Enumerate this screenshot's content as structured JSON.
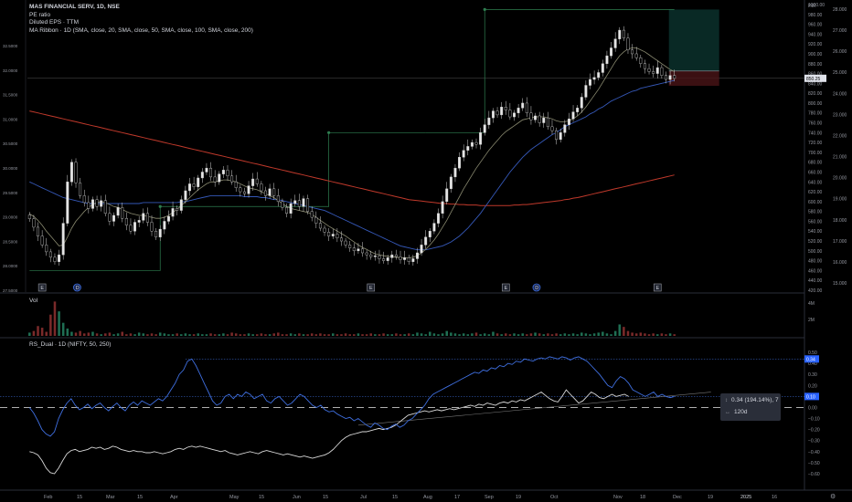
{
  "header": {
    "title": "MAS FINANCIAL SERV, 1D, NSE",
    "pe": "PE ratio",
    "eps": "Diluted EPS · TTM",
    "ma": "MA Ribbon · 1D (SMA, close, 20, SMA, close, 50, SMA, close, 100, SMA, close, 200)"
  },
  "currency": "INR",
  "price_tag": "850.25",
  "volume_label": "Vol",
  "rs_label": "RS_Dual · 1D (NIFTY, 50, 250)",
  "rs_tags": {
    "upper": "0.34",
    "lower": "0.10"
  },
  "measure": {
    "line1": "0.34 (194.14%), 7",
    "line2": "120d",
    "icon1": "arrows-vertical-icon",
    "icon2": "arrows-horizontal-icon"
  },
  "event_badges": [
    "E",
    "D",
    "E",
    "E",
    "D",
    "E"
  ],
  "colors": {
    "bg": "#000000",
    "sma20": "#4a6b3a",
    "sma50": "#3558b8",
    "sma100": "#8a8a70",
    "sma200": "#c0392b",
    "rs_blue": "#3f6fe0",
    "rs_white": "#d9d9d9"
  },
  "chart_data": [
    {
      "type": "candlestick",
      "title": "MAS FINANCIAL SERV, 1D, NSE",
      "x_ticks": [
        "Feb",
        "15",
        "Mar",
        "15",
        "Apr",
        "May",
        "15",
        "Jun",
        "15",
        "Jul",
        "15",
        "Aug",
        "17",
        "Sep",
        "19",
        "Oct",
        "Nov",
        "18",
        "Dec",
        "19",
        "2025",
        "16"
      ],
      "price_ticks": [
        1000,
        980,
        960,
        940,
        920,
        900,
        880,
        860,
        840,
        820,
        800,
        780,
        760,
        740,
        720,
        700,
        680,
        660,
        640,
        620,
        600,
        580,
        560,
        540,
        520,
        500,
        480,
        460,
        440,
        420
      ],
      "price_range": [
        420,
        1000
      ],
      "left_scale_ticks": [
        "32.5000",
        "32.0000",
        "31.5000",
        "31.0000",
        "30.5000",
        "30.0000",
        "29.5000",
        "29.0000",
        "28.5000",
        "28.0000",
        "27.5000"
      ],
      "right_scale_ticks": [
        "28.000",
        "27.000",
        "26.000",
        "25.000",
        "24.000",
        "23.000",
        "22.000",
        "21.000",
        "20.000",
        "19.000",
        "18.000",
        "17.000",
        "16.000",
        "15.000"
      ],
      "close_price": 850.25,
      "closes": [
        565,
        548,
        530,
        512,
        498,
        487,
        478,
        492,
        556,
        640,
        680,
        638,
        612,
        598,
        586,
        604,
        590,
        602,
        576,
        560,
        572,
        588,
        566,
        552,
        540,
        558,
        562,
        576,
        558,
        540,
        528,
        544,
        560,
        570,
        586,
        582,
        604,
        622,
        636,
        630,
        648,
        660,
        668,
        650,
        640,
        656,
        664,
        652,
        640,
        628,
        620,
        616,
        632,
        646,
        636,
        622,
        612,
        626,
        612,
        600,
        588,
        576,
        596,
        602,
        590,
        606,
        580,
        568,
        556,
        546,
        538,
        530,
        534,
        526,
        520,
        512,
        506,
        500,
        504,
        496,
        492,
        488,
        490,
        484,
        480,
        486,
        492,
        488,
        482,
        486,
        478,
        484,
        496,
        512,
        528,
        540,
        556,
        576,
        600,
        626,
        650,
        668,
        690,
        704,
        712,
        720,
        716,
        740,
        756,
        770,
        784,
        776,
        792,
        786,
        772,
        780,
        790,
        800,
        780,
        766,
        774,
        760,
        770,
        752,
        744,
        726,
        740,
        756,
        768,
        782,
        790,
        812,
        836,
        848,
        852,
        862,
        880,
        896,
        912,
        930,
        948,
        932,
        908,
        900,
        892,
        880,
        870,
        864,
        860,
        872,
        856,
        848,
        856,
        850
      ],
      "sma20": [
        575,
        570,
        562,
        552,
        540,
        530,
        520,
        510,
        512,
        528,
        546,
        560,
        570,
        580,
        588,
        594,
        598,
        600,
        598,
        594,
        590,
        588,
        584,
        580,
        576,
        574,
        572,
        572,
        570,
        568,
        566,
        566,
        568,
        572,
        578,
        584,
        592,
        600,
        608,
        616,
        624,
        630,
        636,
        640,
        640,
        642,
        644,
        644,
        642,
        640,
        636,
        632,
        628,
        626,
        624,
        620,
        616,
        612,
        608,
        602,
        596,
        590,
        586,
        584,
        582,
        580,
        578,
        574,
        568,
        562,
        556,
        550,
        545,
        540,
        535,
        530,
        524,
        518,
        512,
        507,
        503,
        498,
        494,
        492,
        490,
        489,
        488,
        487,
        486,
        486,
        486,
        487,
        490,
        496,
        503,
        512,
        522,
        534,
        548,
        562,
        578,
        594,
        610,
        626,
        640,
        654,
        668,
        680,
        692,
        704,
        714,
        724,
        734,
        742,
        748,
        754,
        760,
        766,
        768,
        770,
        772,
        772,
        772,
        770,
        768,
        764,
        762,
        762,
        764,
        768,
        774,
        782,
        792,
        804,
        816,
        828,
        842,
        856,
        870,
        884,
        896,
        904,
        910,
        912,
        912,
        908,
        904,
        898,
        892,
        886,
        880,
        874,
        868,
        864
      ],
      "sma50": [
        640,
        636,
        632,
        628,
        624,
        620,
        616,
        612,
        608,
        606,
        604,
        602,
        600,
        598,
        596,
        596,
        596,
        596,
        596,
        596,
        596,
        596,
        596,
        596,
        596,
        596,
        596,
        598,
        598,
        598,
        598,
        598,
        598,
        598,
        598,
        598,
        600,
        600,
        602,
        604,
        606,
        608,
        610,
        612,
        612,
        612,
        612,
        612,
        612,
        612,
        612,
        610,
        610,
        610,
        610,
        608,
        608,
        606,
        604,
        604,
        602,
        600,
        598,
        596,
        594,
        592,
        590,
        588,
        586,
        584,
        582,
        578,
        574,
        570,
        566,
        562,
        558,
        554,
        550,
        546,
        542,
        538,
        534,
        530,
        526,
        522,
        518,
        514,
        510,
        508,
        506,
        504,
        502,
        502,
        502,
        504,
        506,
        508,
        510,
        514,
        518,
        524,
        530,
        538,
        546,
        556,
        566,
        576,
        588,
        600,
        612,
        624,
        636,
        648,
        660,
        670,
        680,
        690,
        698,
        706,
        712,
        718,
        724,
        730,
        736,
        740,
        746,
        752,
        756,
        760,
        764,
        768,
        772,
        778,
        782,
        788,
        792,
        798,
        804,
        808,
        812,
        816,
        820,
        824,
        826,
        830,
        832,
        834,
        836,
        838,
        840,
        842,
        844,
        846
      ],
      "sma200": [
        784,
        782,
        780,
        778,
        776,
        774,
        772,
        770,
        768,
        766,
        764,
        762,
        760,
        758,
        756,
        754,
        752,
        750,
        748,
        746,
        744,
        742,
        740,
        738,
        736,
        734,
        732,
        730,
        728,
        726,
        724,
        722,
        720,
        718,
        716,
        714,
        712,
        710,
        708,
        706,
        704,
        702,
        700,
        698,
        696,
        694,
        692,
        690,
        688,
        686,
        684,
        682,
        680,
        678,
        676,
        674,
        672,
        670,
        668,
        666,
        664,
        662,
        660,
        658,
        656,
        654,
        652,
        650,
        648,
        646,
        644,
        642,
        640,
        638,
        636,
        634,
        632,
        630,
        628,
        626,
        624,
        622,
        620,
        618,
        616,
        614,
        612,
        610,
        608,
        606,
        604,
        603,
        602,
        601,
        600,
        599,
        598,
        597,
        596,
        596,
        595,
        595,
        594,
        594,
        593,
        593,
        593,
        592,
        592,
        592,
        592,
        592,
        592,
        592,
        592,
        593,
        593,
        594,
        594,
        595,
        596,
        597,
        598,
        599,
        600,
        601,
        602,
        604,
        605,
        607,
        608,
        610,
        612,
        614,
        616,
        618,
        620,
        622,
        624,
        626,
        628,
        630,
        632,
        634,
        636,
        638,
        640,
        642,
        644,
        646,
        648,
        650,
        652,
        654
      ]
    },
    {
      "type": "bar",
      "title": "Vol",
      "y_ticks": [
        "4M",
        "2M"
      ],
      "values_m": [
        0.4,
        0.6,
        1.2,
        1.0,
        0.5,
        2.6,
        4.2,
        3.0,
        1.6,
        0.9,
        0.5,
        0.4,
        0.6,
        0.3,
        0.4,
        0.5,
        0.3,
        0.2,
        0.3,
        0.4,
        0.2,
        0.3,
        0.5,
        0.2,
        0.3,
        0.2,
        0.4,
        0.3,
        0.2,
        0.3,
        0.2,
        0.4,
        0.3,
        0.2,
        0.2,
        0.3,
        0.2,
        0.3,
        0.2,
        0.2,
        0.3,
        0.2,
        0.2,
        0.3,
        0.2,
        0.2,
        0.3,
        0.2,
        0.4,
        0.3,
        0.2,
        0.2,
        0.3,
        0.2,
        0.2,
        0.3,
        0.2,
        0.2,
        0.3,
        0.4,
        0.2,
        0.2,
        0.3,
        0.2,
        0.3,
        0.2,
        0.2,
        0.3,
        0.2,
        0.3,
        0.2,
        0.2,
        0.3,
        0.2,
        0.2,
        0.3,
        0.2,
        0.2,
        0.3,
        0.2,
        0.2,
        0.3,
        0.2,
        0.2,
        0.3,
        0.2,
        0.2,
        0.3,
        0.2,
        0.2,
        0.3,
        0.2,
        0.4,
        0.3,
        0.2,
        0.5,
        0.3,
        0.2,
        0.3,
        0.6,
        0.4,
        0.3,
        0.2,
        0.3,
        0.2,
        0.3,
        0.4,
        0.2,
        0.3,
        0.2,
        0.5,
        0.3,
        0.2,
        0.3,
        0.2,
        0.3,
        0.2,
        0.3,
        0.2,
        0.3,
        0.4,
        0.3,
        0.2,
        0.3,
        0.2,
        0.3,
        0.2,
        0.3,
        0.2,
        0.3,
        0.2,
        0.4,
        0.3,
        0.2,
        0.3,
        0.4,
        0.5,
        0.3,
        0.2,
        0.6,
        1.4,
        1.1,
        0.6,
        0.4,
        0.3,
        0.4,
        0.3,
        0.2,
        0.3,
        0.2,
        0.3,
        0.2,
        0.3,
        0.2
      ]
    },
    {
      "type": "line",
      "title": "RS_Dual · 1D (NIFTY, 50, 250)",
      "y_ticks": [
        0.5,
        0.4,
        0.3,
        0.2,
        0.1,
        0,
        -0.1,
        -0.2,
        -0.3,
        -0.4,
        -0.5,
        -0.6
      ],
      "y_range": [
        -0.65,
        0.55
      ],
      "series": [
        {
          "values": [
            0.0,
            -0.05,
            -0.12,
            -0.2,
            -0.24,
            -0.26,
            -0.22,
            -0.1,
            -0.02,
            0.04,
            0.08,
            0.02,
            -0.02,
            0.0,
            0.03,
            -0.01,
            0.02,
            0.04,
            0.0,
            -0.03,
            0.01,
            0.04,
            0.0,
            -0.03,
            0.02,
            0.05,
            0.02,
            0.06,
            0.04,
            0.02,
            0.05,
            0.08,
            0.06,
            0.1,
            0.16,
            0.22,
            0.3,
            0.34,
            0.42,
            0.44,
            0.38,
            0.3,
            0.22,
            0.14,
            0.06,
            0.02,
            0.04,
            0.1,
            0.12,
            0.08,
            0.12,
            0.1,
            0.14,
            0.12,
            0.08,
            0.1,
            0.12,
            0.06,
            0.04,
            0.08,
            0.1,
            0.06,
            0.02,
            0.04,
            0.08,
            0.12,
            0.1,
            0.06,
            0.02,
            0.0,
            0.02,
            -0.02,
            -0.04,
            -0.03,
            -0.06,
            -0.08,
            -0.1,
            -0.09,
            -0.12,
            -0.1,
            -0.13,
            -0.16,
            -0.18,
            -0.14,
            -0.16,
            -0.19,
            -0.2,
            -0.17,
            -0.15,
            -0.18,
            -0.16,
            -0.12,
            -0.1,
            -0.06,
            -0.02,
            0.02,
            0.08,
            0.12,
            0.14,
            0.16,
            0.18,
            0.2,
            0.22,
            0.24,
            0.26,
            0.28,
            0.3,
            0.32,
            0.31,
            0.34,
            0.33,
            0.36,
            0.35,
            0.38,
            0.37,
            0.4,
            0.39,
            0.42,
            0.41,
            0.44,
            0.43,
            0.42,
            0.44,
            0.45,
            0.44,
            0.46,
            0.45,
            0.44,
            0.46,
            0.45,
            0.43,
            0.45,
            0.46,
            0.44,
            0.42,
            0.38,
            0.34,
            0.3,
            0.25,
            0.2,
            0.18,
            0.24,
            0.28,
            0.26,
            0.22,
            0.16,
            0.14,
            0.12,
            0.1,
            0.12,
            0.14,
            0.1,
            0.12,
            0.1,
            0.09,
            0.1
          ]
        },
        {
          "values": [
            -0.4,
            -0.41,
            -0.43,
            -0.48,
            -0.55,
            -0.59,
            -0.6,
            -0.55,
            -0.48,
            -0.42,
            -0.39,
            -0.38,
            -0.4,
            -0.39,
            -0.38,
            -0.36,
            -0.37,
            -0.36,
            -0.38,
            -0.37,
            -0.35,
            -0.36,
            -0.38,
            -0.39,
            -0.4,
            -0.39,
            -0.4,
            -0.4,
            -0.41,
            -0.41,
            -0.4,
            -0.41,
            -0.42,
            -0.41,
            -0.4,
            -0.38,
            -0.37,
            -0.38,
            -0.36,
            -0.35,
            -0.36,
            -0.35,
            -0.36,
            -0.37,
            -0.38,
            -0.39,
            -0.4,
            -0.39,
            -0.41,
            -0.42,
            -0.43,
            -0.42,
            -0.41,
            -0.4,
            -0.41,
            -0.42,
            -0.4,
            -0.39,
            -0.4,
            -0.41,
            -0.42,
            -0.43,
            -0.42,
            -0.43,
            -0.44,
            -0.45,
            -0.44,
            -0.45,
            -0.46,
            -0.45,
            -0.44,
            -0.43,
            -0.41,
            -0.38,
            -0.34,
            -0.3,
            -0.27,
            -0.25,
            -0.24,
            -0.23,
            -0.22,
            -0.22,
            -0.21,
            -0.2,
            -0.19,
            -0.2,
            -0.19,
            -0.18,
            -0.16,
            -0.13,
            -0.1,
            -0.07,
            -0.06,
            -0.05,
            -0.04,
            -0.03,
            -0.04,
            -0.03,
            -0.02,
            -0.03,
            -0.02,
            -0.01,
            -0.02,
            -0.01,
            0.0,
            0.01,
            0.02,
            0.01,
            0.03,
            0.02,
            0.04,
            0.03,
            0.02,
            0.04,
            0.05,
            0.04,
            0.06,
            0.05,
            0.07,
            0.06,
            0.08,
            0.1,
            0.12,
            0.14,
            0.11,
            0.08,
            0.06,
            0.05,
            0.1,
            0.16,
            0.12,
            0.08,
            0.04,
            0.06,
            0.1,
            0.14,
            0.12,
            0.09,
            0.08,
            0.1,
            0.12,
            0.1,
            0.11,
            0.12,
            0.1
          ]
        }
      ]
    }
  ]
}
